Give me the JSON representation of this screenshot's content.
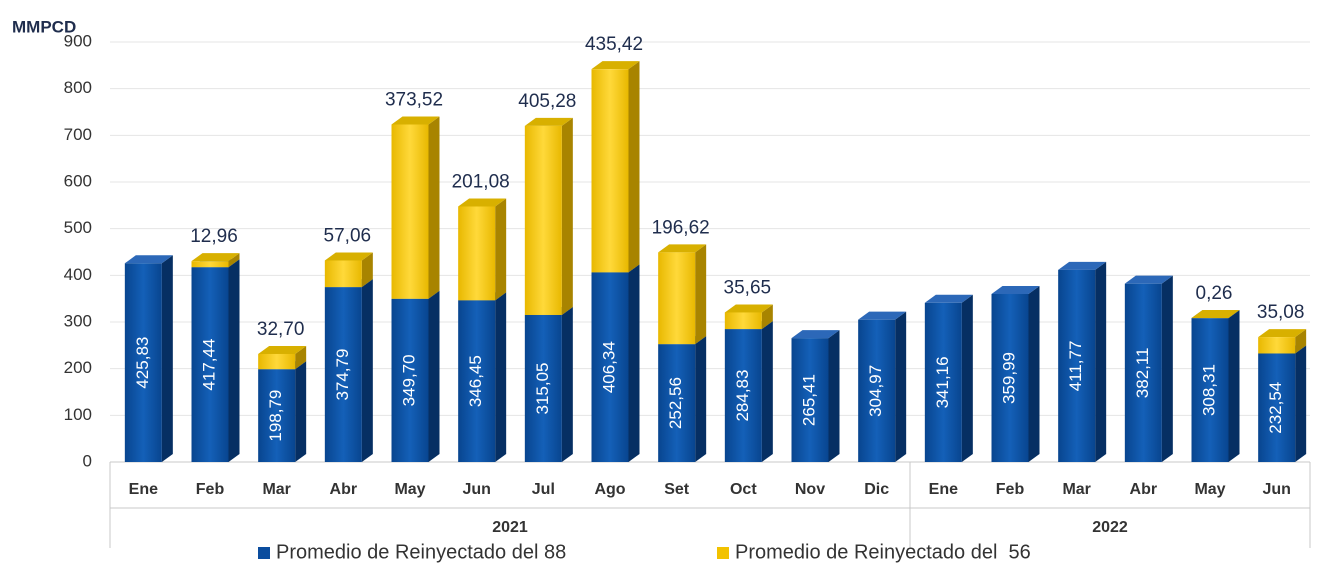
{
  "chart_data": {
    "type": "stacked-bar-3d",
    "y_label": "MMPCD",
    "categories": [
      "Ene",
      "Feb",
      "Mar",
      "Abr",
      "May",
      "Jun",
      "Jul",
      "Ago",
      "Set",
      "Oct",
      "Nov",
      "Dic",
      "Ene",
      "Feb",
      "Mar",
      "Abr",
      "May",
      "Jun"
    ],
    "category_groups": [
      "2021",
      "2021",
      "2021",
      "2021",
      "2021",
      "2021",
      "2021",
      "2021",
      "2021",
      "2021",
      "2021",
      "2021",
      "2022",
      "2022",
      "2022",
      "2022",
      "2022",
      "2022"
    ],
    "series": [
      {
        "name": "Promedio de Reinyectado del 88",
        "color": "#0b4d9e",
        "values": [
          425.83,
          417.44,
          198.79,
          374.79,
          349.7,
          346.45,
          315.05,
          406.34,
          252.56,
          284.83,
          265.41,
          304.97,
          341.16,
          359.99,
          411.77,
          382.11,
          308.31,
          232.54
        ],
        "value_labels": [
          "425,83",
          "417,44",
          "198,79",
          "374,79",
          "349,70",
          "346,45",
          "315,05",
          "406,34",
          "252,56",
          "284,83",
          "265,41",
          "304,97",
          "341,16",
          "359,99",
          "411,77",
          "382,11",
          "308,31",
          "232,54"
        ]
      },
      {
        "name": "Promedio de Reinyectado del  56",
        "color": "#f2c200",
        "values": [
          null,
          12.96,
          32.7,
          57.06,
          373.52,
          201.08,
          405.28,
          435.42,
          196.62,
          35.65,
          null,
          null,
          null,
          null,
          null,
          null,
          0.26,
          35.08
        ],
        "value_labels": [
          null,
          "12,96",
          "32,70",
          "57,06",
          "373,52",
          "201,08",
          "405,28",
          "435,42",
          "196,62",
          "35,65",
          null,
          null,
          null,
          null,
          null,
          null,
          "0,26",
          "35,08"
        ]
      }
    ],
    "ylim": [
      0,
      900
    ],
    "yticks": [
      0,
      100,
      200,
      300,
      400,
      500,
      600,
      700,
      800,
      900
    ],
    "grid": true,
    "legend": "bottom"
  }
}
